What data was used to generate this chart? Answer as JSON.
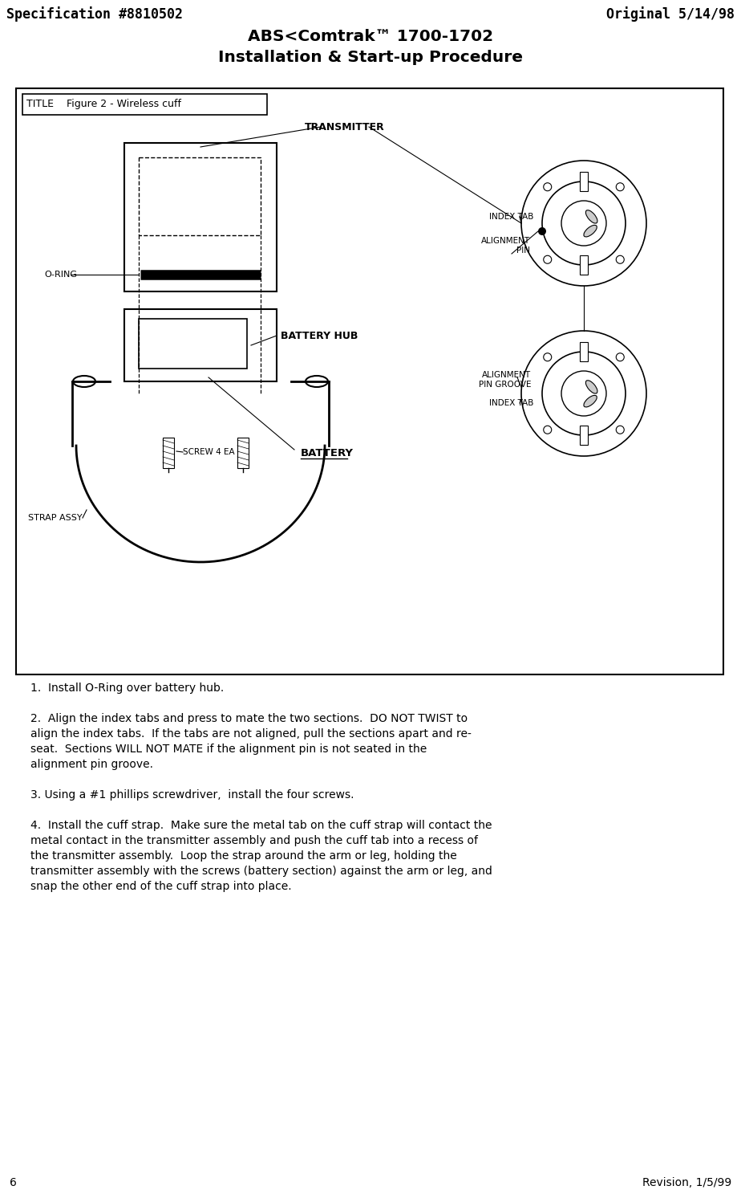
{
  "spec_left": "Specification #8810502",
  "spec_right": "Original 5/14/98",
  "title_line1": "ABS<Comtrak™ 1700-1702",
  "title_line2": "Installation & Start-up Procedure",
  "page_number": "6",
  "revision": "Revision, 1/5/99",
  "figure_title": "TITLE    Figure 2 - Wireless cuff",
  "diagram_label_transmitter": "TRANSMITTER",
  "diagram_label_battery_hub": "BATTERY HUB",
  "diagram_label_battery": "BATTERY",
  "diagram_label_oring": "O-RING",
  "diagram_label_screw": "SCREW 4 EA",
  "diagram_label_strap": "STRAP ASSY",
  "diagram_label_index_tab_top": "INDEX TAB",
  "diagram_label_align_pin_top": "ALIGNMENT\nPIN",
  "diagram_label_align_pin_groove": "ALIGNMENT\nPIN GROOVE",
  "diagram_label_index_tab_bot": "INDEX TAB",
  "instructions": [
    "1.  Install O-Ring over battery hub.\n",
    "2.  Align the index tabs and press to mate the two sections.  DO NOT TWIST to\nalign the index tabs.  If the tabs are not aligned, pull the sections apart and re-\nseat.  Sections WILL NOT MATE if the alignment pin is not seated in the\nalignment pin groove.\n",
    "3. Using a #1 phillips screwdriver,  install the four screws.\n",
    "4.  Install the cuff strap.  Make sure the metal tab on the cuff strap will contact the\nmetal contact in the transmitter assembly and push the cuff tab into a recess of\nthe transmitter assembly.  Loop the strap around the arm or leg, holding the\ntransmitter assembly with the screws (battery section) against the arm or leg, and\nsnap the other end of the cuff strap into place."
  ],
  "bg_color": "#ffffff",
  "text_color": "#000000"
}
